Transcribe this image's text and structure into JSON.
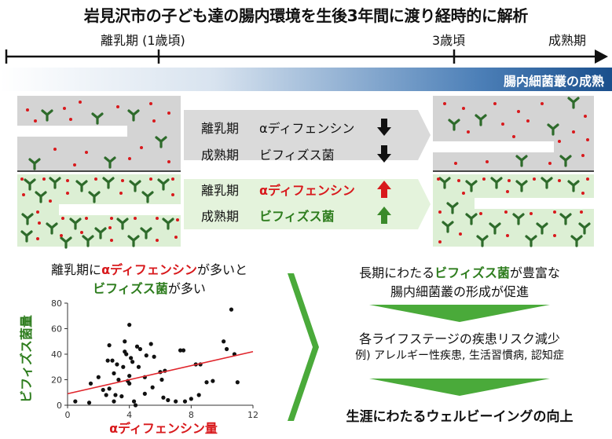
{
  "title": "岩見沢市の子ども達の腸内環境を生後3年間に渡り経時的に解析",
  "timeline": {
    "weaning_label": "離乳期 (1歳頃)",
    "age3_label": "3歳頃",
    "mature_label": "成熟期"
  },
  "banner": "腸内細菌叢の成熟",
  "legend_low": {
    "row1_period": "離乳期",
    "row1_item": "αディフェンシン",
    "row2_period": "成熟期",
    "row2_item": "ビフィズス菌"
  },
  "legend_high": {
    "row1_period": "離乳期",
    "row1_item": "αディフェンシン",
    "row2_period": "成熟期",
    "row2_item": "ビフィズス菌"
  },
  "finding": {
    "line1_a": "離乳期に",
    "line1_b": "αディフェンシン",
    "line1_c": "が多いと",
    "line2_a": "ビフィズス菌",
    "line2_b": "が多い"
  },
  "outcomes": {
    "o1_line1_a": "長期にわたる",
    "o1_line1_b": "ビフィズス菌",
    "o1_line1_c": "が豊富な",
    "o1_line2": "腸内細菌叢の形成が促進",
    "o2_line1": "各ライフステージの疾患リスク減少",
    "o2_line2": "例) アレルギー性疾患, 生活習慣病, 認知症",
    "o3": "生涯にわたるウェルビーイングの向上"
  },
  "colors": {
    "gray_box": "#d4d4d4",
    "green_box": "#dcefd4",
    "arrow_green": "#4aaa3a",
    "arrow_up_red": "#d8191c",
    "arrow_up_green": "#3a8a2a",
    "fit_line": "#e0242b",
    "bacteria_green": "#2e6b2b",
    "dot_red": "#d8191c"
  },
  "chart_data": {
    "type": "scatter",
    "xlabel": "αディフェンシン量",
    "ylabel": "ビフィズス菌量",
    "xlim": [
      0,
      12
    ],
    "ylim": [
      0,
      80
    ],
    "x_ticks": [
      0,
      4,
      8,
      12
    ],
    "y_ticks": [
      0,
      20,
      40,
      60,
      80
    ],
    "grid": false,
    "points": [
      [
        0.5,
        3
      ],
      [
        1.4,
        2
      ],
      [
        1.5,
        17
      ],
      [
        2.0,
        22
      ],
      [
        2.3,
        12
      ],
      [
        2.5,
        8
      ],
      [
        2.6,
        35
      ],
      [
        2.7,
        13
      ],
      [
        3.0,
        3
      ],
      [
        2.7,
        47
      ],
      [
        2.9,
        35
      ],
      [
        3.0,
        25
      ],
      [
        3.1,
        8
      ],
      [
        3.2,
        32
      ],
      [
        3.3,
        20
      ],
      [
        3.5,
        7
      ],
      [
        3.6,
        30
      ],
      [
        3.7,
        42
      ],
      [
        3.7,
        50
      ],
      [
        3.8,
        40
      ],
      [
        3.9,
        19
      ],
      [
        4.0,
        17
      ],
      [
        4.0,
        23
      ],
      [
        4.0,
        63
      ],
      [
        4.1,
        37
      ],
      [
        4.2,
        34
      ],
      [
        4.3,
        3
      ],
      [
        4.4,
        0
      ],
      [
        4.5,
        46
      ],
      [
        4.6,
        30
      ],
      [
        4.7,
        44
      ],
      [
        5.0,
        9
      ],
      [
        5.0,
        22
      ],
      [
        5.1,
        39
      ],
      [
        5.4,
        48
      ],
      [
        5.5,
        14
      ],
      [
        5.6,
        38
      ],
      [
        6.0,
        26
      ],
      [
        6.1,
        20
      ],
      [
        6.2,
        6
      ],
      [
        6.3,
        27
      ],
      [
        6.5,
        4
      ],
      [
        7.0,
        3
      ],
      [
        7.3,
        43
      ],
      [
        7.5,
        43
      ],
      [
        7.6,
        3
      ],
      [
        8.0,
        5
      ],
      [
        8.3,
        32
      ],
      [
        8.5,
        8
      ],
      [
        8.6,
        32
      ],
      [
        9.0,
        18
      ],
      [
        9.4,
        19
      ],
      [
        10.1,
        50
      ],
      [
        10.3,
        44
      ],
      [
        10.8,
        40
      ],
      [
        10.6,
        75
      ],
      [
        11.0,
        18
      ]
    ],
    "fit": {
      "x": [
        0,
        12
      ],
      "y": [
        9,
        42
      ]
    }
  }
}
